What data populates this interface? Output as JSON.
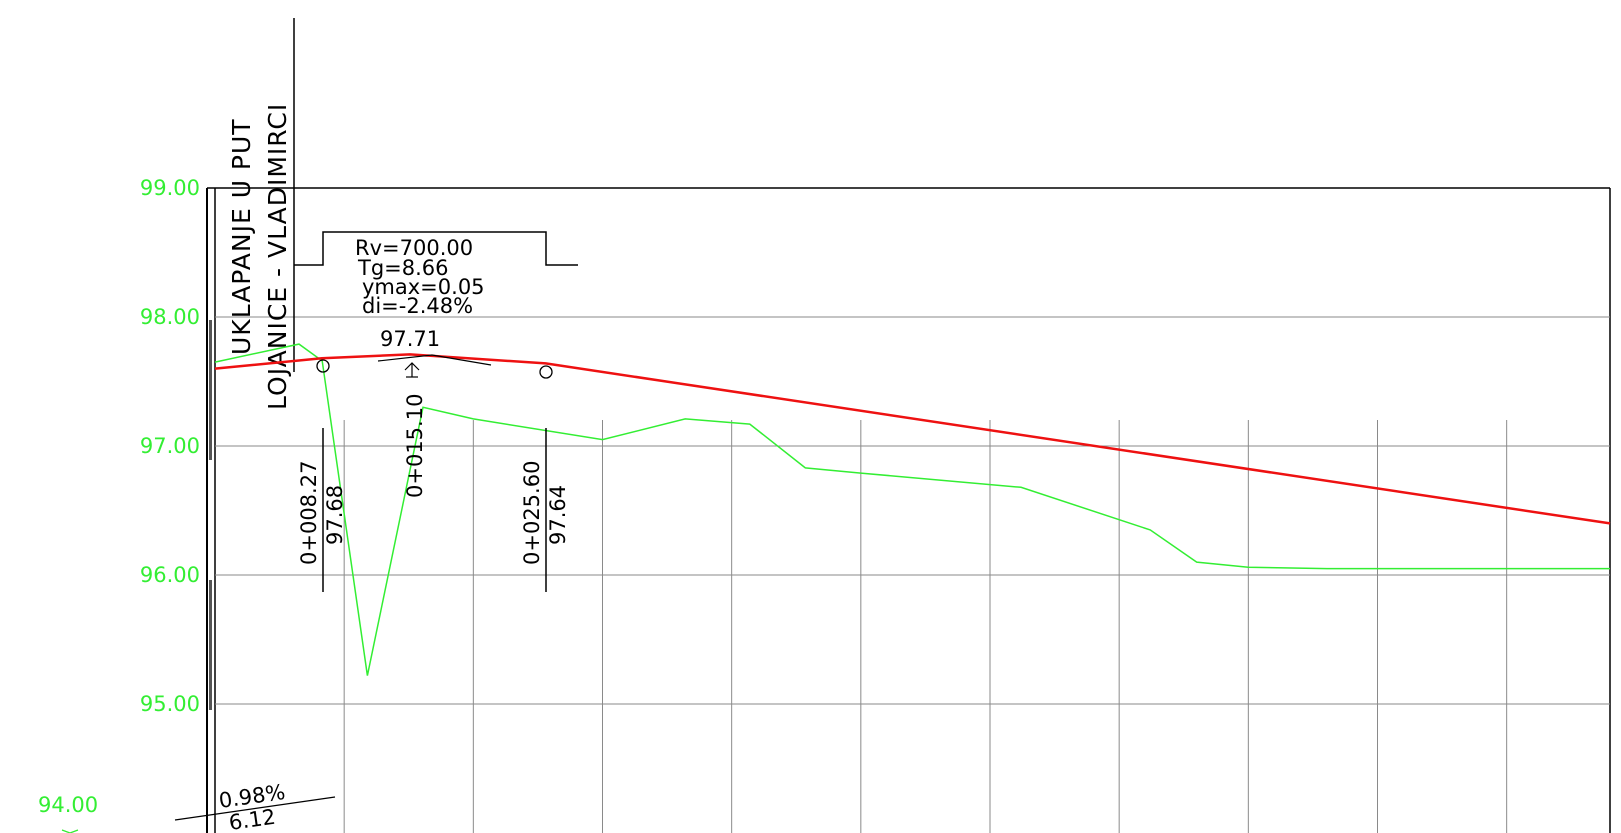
{
  "title": {
    "line1": "UKLAPANJE U PUT",
    "line2": "LOJANICE - VLADIMIRCI"
  },
  "colors": {
    "terrain": "#33ee33",
    "grade": "#ee1111",
    "label": "#33ee33",
    "ink": "#000000",
    "grid": "#8a8a8a"
  },
  "curve_box": {
    "rv": "Rv=700.00",
    "tg": "Tg=8.66",
    "ymax": "ymax=0.05",
    "di": "di=-2.48%"
  },
  "peak": {
    "elevation": "97.71",
    "station": "0+015.10"
  },
  "points": [
    {
      "station": "0+008.27",
      "elevation": "97.68"
    },
    {
      "station": "0+025.60",
      "elevation": "97.64"
    }
  ],
  "slope_label": {
    "grade": "0.98%",
    "length": "6.12"
  },
  "bottom_datum": "94.00",
  "chart_data": {
    "type": "line",
    "y_ticks": [
      "99.00",
      "98.00",
      "97.00",
      "96.00",
      "95.00"
    ],
    "ylim": [
      94.0,
      99.0
    ],
    "xlim": [
      0,
      108
    ],
    "grid": true,
    "series": [
      {
        "x": [
          0,
          6.5,
          8.3,
          11.8,
          16.1,
          20.0,
          30.0,
          36.4,
          41.4,
          45.7,
          50.0,
          62.4,
          72.4,
          76.0,
          80.0,
          86.1,
          93.6,
          108.0
        ],
        "y": [
          97.65,
          97.79,
          97.66,
          95.22,
          97.3,
          97.21,
          97.05,
          97.21,
          97.17,
          96.83,
          96.79,
          96.68,
          96.35,
          96.1,
          96.06,
          96.05,
          96.05,
          96.05
        ]
      },
      {
        "x": [
          0,
          8.27,
          15.1,
          25.6,
          108.0
        ],
        "y": [
          97.6,
          97.68,
          97.71,
          97.64,
          96.4
        ]
      }
    ]
  }
}
